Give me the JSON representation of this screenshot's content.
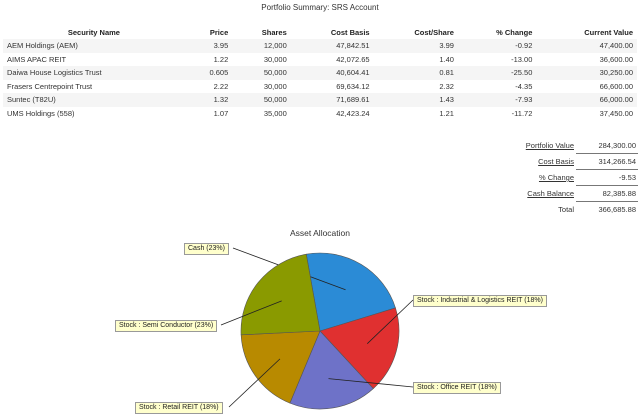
{
  "page": {
    "title": "Portfolio Summary: SRS Account"
  },
  "table": {
    "columns": [
      "Security Name",
      "Price",
      "Shares",
      "Cost Basis",
      "Cost/Share",
      "% Change",
      "Current Value"
    ],
    "rows": [
      [
        "AEM Holdings (AEM)",
        "3.95",
        "12,000",
        "47,842.51",
        "3.99",
        "-0.92",
        "47,400.00"
      ],
      [
        "AIMS APAC REIT",
        "1.22",
        "30,000",
        "42,072.65",
        "1.40",
        "-13.00",
        "36,600.00"
      ],
      [
        "Daiwa House Logistics Trust",
        "0.605",
        "50,000",
        "40,604.41",
        "0.81",
        "-25.50",
        "30,250.00"
      ],
      [
        "Frasers Centrepoint Trust",
        "2.22",
        "30,000",
        "69,634.12",
        "2.32",
        "-4.35",
        "66,600.00"
      ],
      [
        "Suntec (T82U)",
        "1.32",
        "50,000",
        "71,689.61",
        "1.43",
        "-7.93",
        "66,000.00"
      ],
      [
        "UMS Holdings (558)",
        "1.07",
        "35,000",
        "42,423.24",
        "1.21",
        "-11.72",
        "37,450.00"
      ]
    ]
  },
  "summary": [
    {
      "label": "Portfolio Value",
      "value": "284,300.00"
    },
    {
      "label": "Cost Basis",
      "value": "314,266.54"
    },
    {
      "label": "% Change",
      "value": "-9.53"
    },
    {
      "label": "Cash Balance",
      "value": "82,385.88"
    },
    {
      "label": "Total",
      "value": "366,685.88"
    }
  ],
  "chart_data": {
    "type": "pie",
    "title": "Asset Allocation",
    "slices": [
      {
        "label": "Cash (23%)",
        "value": 23,
        "color": "#2b8bd6"
      },
      {
        "label": "Stock : Industrial & Logistics REIT (18%)",
        "value": 18,
        "color": "#e03030"
      },
      {
        "label": "Stock : Office REIT (18%)",
        "value": 18,
        "color": "#6e72c8"
      },
      {
        "label": "Stock : Retail REIT (18%)",
        "value": 18,
        "color": "#b88a00"
      },
      {
        "label": "Stock : Semi Conductor (23%)",
        "value": 23,
        "color": "#8a9a00"
      }
    ]
  }
}
